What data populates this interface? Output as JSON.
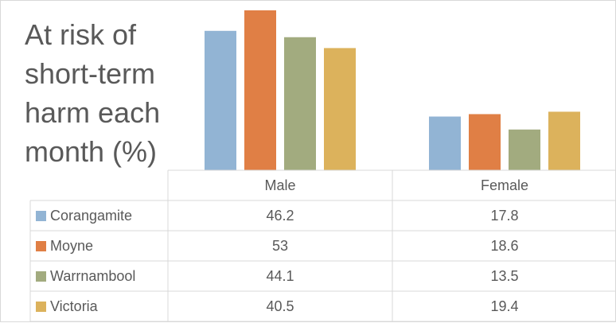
{
  "chart_data": {
    "type": "bar",
    "title": "At risk of short-term harm each month (%)",
    "categories": [
      "Male",
      "Female"
    ],
    "series": [
      {
        "name": "Corangamite",
        "color": "#92B4D4",
        "values": [
          46.2,
          17.8
        ]
      },
      {
        "name": "Moyne",
        "color": "#E07F45",
        "values": [
          53,
          18.6
        ]
      },
      {
        "name": "Warrnambool",
        "color": "#A2AB7F",
        "values": [
          44.1,
          13.5
        ]
      },
      {
        "name": "Victoria",
        "color": "#DCB25C",
        "values": [
          40.5,
          19.4
        ]
      }
    ],
    "ylim": [
      0,
      53
    ],
    "grid": false,
    "legend_placement": "data-table",
    "data_table": true
  }
}
